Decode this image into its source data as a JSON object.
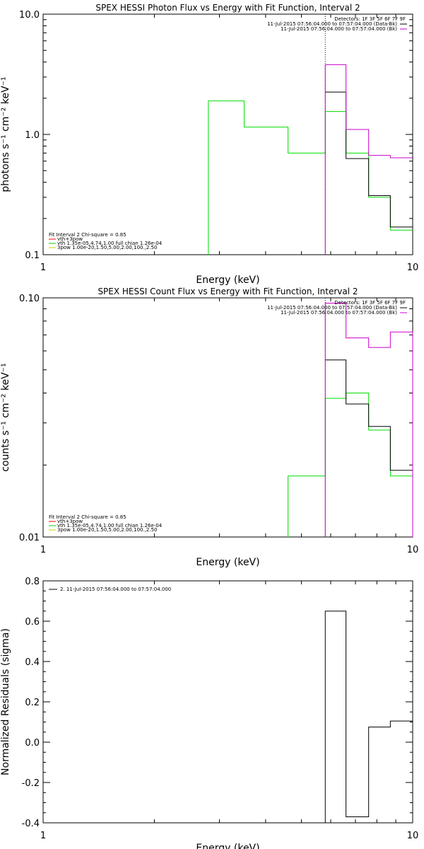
{
  "chart_data": [
    {
      "id": "photon",
      "type": "line",
      "title": "SPEX HESSI Photon Flux vs Energy with Fit Function, Interval 2",
      "xlabel": "Energy (keV)",
      "ylabel": "photons s⁻¹ cm⁻² keV⁻¹",
      "xscale": "log",
      "yscale": "log",
      "xlim": [
        1,
        10
      ],
      "ylim": [
        0.1,
        10
      ],
      "x_ticks": [
        {
          "v": 1,
          "label": "1"
        },
        {
          "v": 10,
          "label": "10"
        }
      ],
      "y_ticks": [
        {
          "v": 0.1,
          "label": "0.1"
        },
        {
          "v": 1,
          "label": "1.0"
        },
        {
          "v": 10,
          "label": "10.0"
        }
      ],
      "vline_x": 5.8,
      "legend_top_right": [
        {
          "text": "Detectors: 1F 3F 5F 6F 7F 9F",
          "color": ""
        },
        {
          "text": "11-Jul-2015 07:56:04.000 to 07:57:04.000 (Data-Bk)",
          "color": "#000000"
        },
        {
          "text": "11-Jul-2015 07:56:04.000 to 07:57:04.000 (Bk)",
          "color": "#cc00cc"
        }
      ],
      "legend_bottom_left": [
        {
          "text": "Fit Interval 2   Chi-square = 0.85",
          "color": ""
        },
        {
          "text": "vth+3pow",
          "color": "#ff0000"
        },
        {
          "text": "vth 1.35e-05,4.74,1.00  full chian 1.26e-04",
          "color": "#00cc00"
        },
        {
          "text": "3pow 1.00e-20,1.50,5.00,2.00,100.,2.50",
          "color": "#cccc00"
        }
      ],
      "series": [
        {
          "color": "#00dd00",
          "bins": [
            {
              "x0": 2.8,
              "x1": 3.5,
              "y": 1.9
            },
            {
              "x0": 3.5,
              "x1": 4.6,
              "y": 1.15
            },
            {
              "x0": 4.6,
              "x1": 5.8,
              "y": 0.7
            },
            {
              "x0": 5.8,
              "x1": 6.6,
              "y": 1.55
            },
            {
              "x0": 6.6,
              "x1": 7.6,
              "y": 0.7
            },
            {
              "x0": 7.6,
              "x1": 8.7,
              "y": 0.3
            },
            {
              "x0": 8.7,
              "x1": 10,
              "y": 0.16
            }
          ],
          "drop_left_to": 0.1
        },
        {
          "color": "#000000",
          "bins": [
            {
              "x0": 5.8,
              "x1": 6.6,
              "y": 2.25
            },
            {
              "x0": 6.6,
              "x1": 7.6,
              "y": 0.63
            },
            {
              "x0": 7.6,
              "x1": 8.7,
              "y": 0.31
            },
            {
              "x0": 8.7,
              "x1": 10,
              "y": 0.17
            }
          ]
        },
        {
          "color": "#cc00cc",
          "bins": [
            {
              "x0": 5.8,
              "x1": 6.6,
              "y": 3.8
            },
            {
              "x0": 6.6,
              "x1": 7.6,
              "y": 1.1
            },
            {
              "x0": 7.6,
              "x1": 8.7,
              "y": 0.67
            },
            {
              "x0": 8.7,
              "x1": 10,
              "y": 0.64
            }
          ],
          "drop_left_to": 0.1
        }
      ]
    },
    {
      "id": "count",
      "type": "line",
      "title": "SPEX HESSI Count Flux vs Energy with Fit Function, Interval 2",
      "xlabel": "Energy (keV)",
      "ylabel": "counts s⁻¹ cm⁻² keV⁻¹",
      "xscale": "log",
      "yscale": "log",
      "xlim": [
        1,
        10
      ],
      "ylim": [
        0.01,
        0.1
      ],
      "x_ticks": [
        {
          "v": 1,
          "label": "1"
        },
        {
          "v": 10,
          "label": "10"
        }
      ],
      "y_ticks": [
        {
          "v": 0.01,
          "label": "0.01"
        },
        {
          "v": 0.1,
          "label": "0.10"
        }
      ],
      "vline_x": 5.8,
      "legend_top_right": [
        {
          "text": "Detectors: 1F 3F 5F 6F 7F 9F",
          "color": ""
        },
        {
          "text": "11-Jul-2015 07:56:04.000 to 07:57:04.000 (Data-Bk)",
          "color": "#000000"
        },
        {
          "text": "11-Jul-2015 07:56:04.000 to 07:57:04.000 (Bk)",
          "color": "#cc00cc"
        }
      ],
      "legend_bottom_left": [
        {
          "text": "Fit Interval 2   Chi-square = 0.85",
          "color": ""
        },
        {
          "text": "vth+3pow",
          "color": "#ff0000"
        },
        {
          "text": "vth 1.35e-05,4.74,1.00  full chian 1.26e-04",
          "color": "#00cc00"
        },
        {
          "text": "3pow 1.00e-20,1.50,5.00,2.00,100.,2.50",
          "color": "#cccc00"
        }
      ],
      "series": [
        {
          "color": "#00dd00",
          "bins": [
            {
              "x0": 4.6,
              "x1": 5.8,
              "y": 0.018
            },
            {
              "x0": 5.8,
              "x1": 6.6,
              "y": 0.038
            },
            {
              "x0": 6.6,
              "x1": 7.6,
              "y": 0.04
            },
            {
              "x0": 7.6,
              "x1": 8.7,
              "y": 0.028
            },
            {
              "x0": 8.7,
              "x1": 10,
              "y": 0.018
            }
          ],
          "drop_left_to": 0.01
        },
        {
          "color": "#000000",
          "bins": [
            {
              "x0": 5.8,
              "x1": 6.6,
              "y": 0.055
            },
            {
              "x0": 6.6,
              "x1": 7.6,
              "y": 0.036
            },
            {
              "x0": 7.6,
              "x1": 8.7,
              "y": 0.029
            },
            {
              "x0": 8.7,
              "x1": 10,
              "y": 0.019
            }
          ]
        },
        {
          "color": "#cc00cc",
          "bins": [
            {
              "x0": 5.8,
              "x1": 6.6,
              "y": 0.095
            },
            {
              "x0": 6.6,
              "x1": 7.6,
              "y": 0.068
            },
            {
              "x0": 7.6,
              "x1": 8.7,
              "y": 0.062
            },
            {
              "x0": 8.7,
              "x1": 10,
              "y": 0.072
            }
          ],
          "drop_left_to": 0.01,
          "drop_right_to": 0.01
        }
      ]
    },
    {
      "id": "resid",
      "type": "line",
      "title": "",
      "xlabel": "Energy (keV)",
      "ylabel": "Normalized Residuals (sigma)",
      "xscale": "log",
      "yscale": "linear",
      "xlim": [
        1,
        10
      ],
      "ylim": [
        -0.4,
        0.8
      ],
      "x_ticks": [
        {
          "v": 1,
          "label": "1"
        },
        {
          "v": 10,
          "label": "10"
        }
      ],
      "y_ticks": [
        {
          "v": -0.4,
          "label": "-0.4"
        },
        {
          "v": -0.2,
          "label": "-0.2"
        },
        {
          "v": 0,
          "label": "0.0"
        },
        {
          "v": 0.2,
          "label": "0.2"
        },
        {
          "v": 0.4,
          "label": "0.4"
        },
        {
          "v": 0.6,
          "label": "0.6"
        },
        {
          "v": 0.8,
          "label": "0.8"
        }
      ],
      "legend_top_left": [
        {
          "text": "2. 11-Jul-2015 07:56:04.000 to 07:57:04.000",
          "color": "#000000"
        }
      ],
      "series": [
        {
          "color": "#000000",
          "bins": [
            {
              "x0": 5.8,
              "x1": 6.6,
              "y": 0.65
            },
            {
              "x0": 6.6,
              "x1": 7.6,
              "y": -0.37
            },
            {
              "x0": 7.6,
              "x1": 8.7,
              "y": 0.075
            },
            {
              "x0": 8.7,
              "x1": 10,
              "y": 0.105
            }
          ],
          "drop_left_to": -0.4
        }
      ]
    }
  ]
}
